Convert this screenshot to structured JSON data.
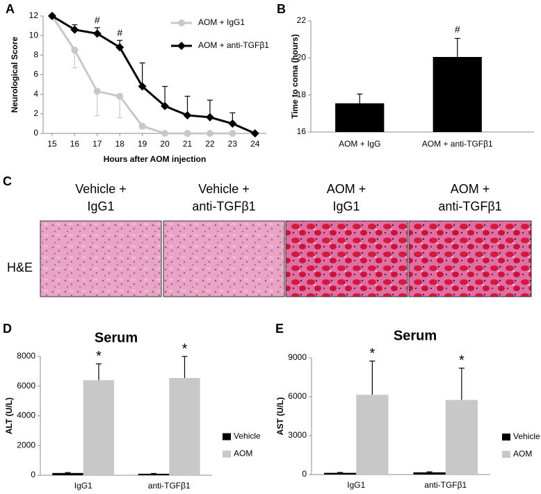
{
  "chart_data": [
    {
      "type": "line",
      "label": "A",
      "x": [
        15,
        16,
        17,
        18,
        19,
        20,
        21,
        22,
        23,
        24
      ],
      "xlim": [
        14.6,
        24.5
      ],
      "xticks": [
        15,
        16,
        17,
        18,
        19,
        20,
        21,
        22,
        23,
        24
      ],
      "ylim": [
        0,
        12
      ],
      "yticks": [
        0,
        2,
        4,
        6,
        8,
        10,
        12
      ],
      "ylabel": "Neurological Score",
      "xlabel": "Hours after AOM injection",
      "series": [
        {
          "name": "AOM + IgG1",
          "color": "#c8c8c8",
          "marker": "circle",
          "error_direction": "down",
          "values": [
            12,
            8.5,
            4.3,
            3.8,
            0.75,
            0,
            0,
            0,
            0,
            null
          ],
          "errors": [
            null,
            1.8,
            2.5,
            2.2,
            0.3,
            null,
            null,
            null,
            null,
            null
          ]
        },
        {
          "name": "AOM + anti-TGFβ1",
          "color": "#000000",
          "marker": "diamond",
          "error_direction": "up",
          "values": [
            12,
            10.6,
            10.2,
            8.8,
            4.8,
            2.8,
            1.85,
            1.65,
            1.0,
            0
          ],
          "errors": [
            null,
            0.5,
            0.6,
            0.7,
            2.4,
            2.0,
            1.95,
            1.75,
            1.1,
            null
          ]
        }
      ],
      "annotations": [
        null,
        null,
        "#",
        "#",
        null,
        null,
        null,
        null,
        null,
        null
      ]
    },
    {
      "type": "bar",
      "label": "B",
      "categories": [
        "AOM + IgG",
        "AOM + anti-TGFβ1"
      ],
      "values": [
        17.55,
        20.05
      ],
      "errors": [
        0.5,
        1.0
      ],
      "annotations": [
        null,
        "#"
      ],
      "color": "#000000",
      "ylim": [
        16,
        22
      ],
      "yticks": [
        16,
        18,
        20,
        22
      ],
      "ylabel": "Time to coma (hours)"
    },
    {
      "type": "grouped_bar",
      "label": "D",
      "title": "Serum",
      "categories": [
        "IgG1",
        "anti-TGFβ1"
      ],
      "ylim": [
        0,
        8000
      ],
      "yticks": [
        0,
        2000,
        4000,
        6000,
        8000
      ],
      "ylabel": "ALT (U/L)",
      "series": [
        {
          "name": "Vehicle",
          "color": "#000000",
          "values": [
            150,
            100
          ],
          "errors": [
            30,
            20
          ],
          "annotations": [
            null,
            null
          ]
        },
        {
          "name": "AOM",
          "color": "#c8c8c8",
          "values": [
            6400,
            6550
          ],
          "errors": [
            1100,
            1450
          ],
          "annotations": [
            "*",
            "*"
          ]
        }
      ]
    },
    {
      "type": "grouped_bar",
      "label": "E",
      "title": "Serum",
      "categories": [
        "IgG1",
        "anti-TGFβ1"
      ],
      "ylim": [
        0,
        9000
      ],
      "yticks": [
        0,
        3000,
        6000,
        9000
      ],
      "ylabel": "AST (U/L)",
      "series": [
        {
          "name": "Vehicle",
          "color": "#000000",
          "values": [
            130,
            170
          ],
          "errors": [
            30,
            40
          ],
          "annotations": [
            null,
            null
          ]
        },
        {
          "name": "AOM",
          "color": "#c8c8c8",
          "values": [
            6150,
            5750
          ],
          "errors": [
            2600,
            2450
          ],
          "annotations": [
            "*",
            "*"
          ]
        }
      ]
    }
  ],
  "histology": {
    "label": "C",
    "row_label": "H&E",
    "columns": [
      [
        "Vehicle +",
        "IgG1"
      ],
      [
        "Vehicle +",
        "anti-TGFβ1"
      ],
      [
        "AOM +",
        "IgG1"
      ],
      [
        "AOM +",
        "anti-TGFβ1"
      ]
    ]
  }
}
